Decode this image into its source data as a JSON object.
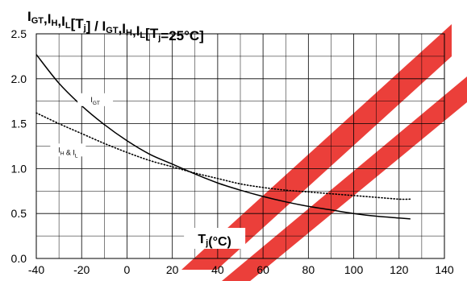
{
  "chart_data": {
    "type": "line",
    "title": {
      "parts": [
        {
          "t": "I",
          "sub": false
        },
        {
          "t": "GT",
          "sub": true
        },
        {
          "t": ",I",
          "sub": false
        },
        {
          "t": "H",
          "sub": true
        },
        {
          "t": ",I",
          "sub": false
        },
        {
          "t": "L",
          "sub": true
        },
        {
          "t": "[T",
          "sub": false
        },
        {
          "t": "j",
          "sub": true
        },
        {
          "t": "] / I",
          "sub": false
        },
        {
          "t": "GT",
          "sub": true
        },
        {
          "t": ",I",
          "sub": false
        },
        {
          "t": "H",
          "sub": true
        },
        {
          "t": ",I",
          "sub": false
        },
        {
          "t": "L",
          "sub": true
        },
        {
          "t": "[T",
          "sub": false
        },
        {
          "t": "j",
          "sub": true
        },
        {
          "t": "=25°C]",
          "sub": false
        }
      ]
    },
    "xlabel": {
      "parts": [
        {
          "t": "T",
          "sub": false
        },
        {
          "t": "j",
          "sub": true
        },
        {
          "t": "(°C)",
          "sub": false
        }
      ]
    },
    "xlim": [
      -40,
      140
    ],
    "ylim": [
      0,
      2.5
    ],
    "xticks": [
      -40,
      -20,
      0,
      20,
      40,
      60,
      80,
      100,
      120,
      140
    ],
    "xtick_labels": [
      "-40",
      "-20",
      "0",
      "20",
      "40",
      "60",
      "80",
      "100",
      "120",
      "140"
    ],
    "yticks": [
      0,
      0.5,
      1.0,
      1.5,
      2.0,
      2.5
    ],
    "ytick_labels": [
      "0.0",
      "0.5",
      "1.0",
      "1.5",
      "2.0",
      "2.5"
    ],
    "x_minor_step": 10,
    "y_minor_step": 0.25,
    "grid": true,
    "series": [
      {
        "name_parts": [
          {
            "t": "I",
            "sub": false
          },
          {
            "t": "GT",
            "sub": true
          }
        ],
        "style": "solid",
        "color": "#000000",
        "label_at": [
          -14,
          1.74
        ],
        "x": [
          -40,
          -30,
          -20,
          -10,
          0,
          10,
          20,
          30,
          40,
          50,
          60,
          70,
          80,
          90,
          100,
          110,
          120,
          125
        ],
        "y": [
          2.27,
          1.95,
          1.7,
          1.49,
          1.31,
          1.16,
          1.05,
          0.94,
          0.84,
          0.76,
          0.69,
          0.63,
          0.58,
          0.54,
          0.5,
          0.47,
          0.45,
          0.44
        ]
      },
      {
        "name_parts": [
          {
            "t": "I",
            "sub": false
          },
          {
            "t": "H",
            "sub": true
          },
          {
            "t": " & I",
            "sub": false
          },
          {
            "t": "L",
            "sub": true
          }
        ],
        "style": "dotted",
        "color": "#000000",
        "label_at": [
          -26,
          1.18
        ],
        "x": [
          -40,
          -30,
          -20,
          -10,
          0,
          10,
          20,
          30,
          40,
          50,
          60,
          70,
          80,
          90,
          100,
          110,
          120,
          125
        ],
        "y": [
          1.62,
          1.5,
          1.39,
          1.28,
          1.18,
          1.09,
          1.02,
          0.95,
          0.89,
          0.83,
          0.79,
          0.76,
          0.74,
          0.72,
          0.7,
          0.68,
          0.66,
          0.66
        ]
      }
    ]
  }
}
